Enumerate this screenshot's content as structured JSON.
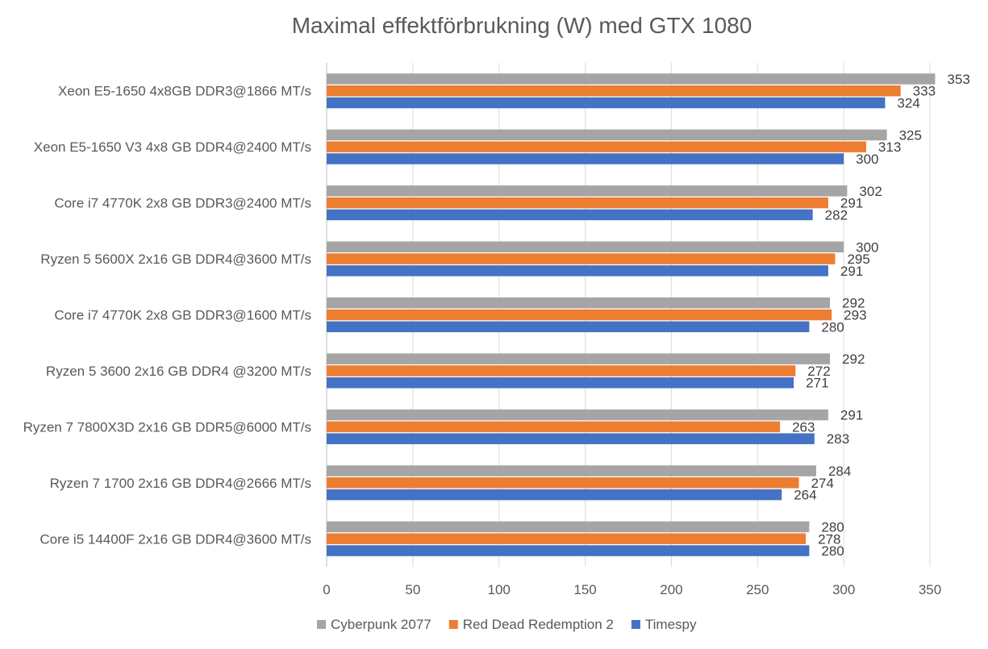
{
  "chart_data": {
    "type": "bar",
    "orientation": "horizontal",
    "title": "Maximal effektförbrukning (W) med GTX 1080",
    "xlabel": "",
    "ylabel": "",
    "xlim": [
      0,
      350
    ],
    "x_ticks": [
      0,
      50,
      100,
      150,
      200,
      250,
      300,
      350
    ],
    "grid": "vertical",
    "legend_position": "bottom",
    "categories": [
      "Xeon E5-1650 4x8GB DDR3@1866 MT/s",
      "Xeon E5-1650 V3 4x8 GB DDR4@2400 MT/s",
      "Core i7 4770K 2x8 GB DDR3@2400 MT/s",
      "Ryzen 5 5600X 2x16 GB DDR4@3600 MT/s",
      "Core i7 4770K 2x8 GB DDR3@1600 MT/s",
      "Ryzen 5 3600 2x16 GB DDR4 @3200 MT/s",
      "Ryzen 7 7800X3D 2x16 GB DDR5@6000 MT/s",
      "Ryzen 7 1700 2x16 GB DDR4@2666 MT/s",
      "Core i5 14400F 2x16 GB DDR4@3600 MT/s"
    ],
    "series": [
      {
        "name": "Cyberpunk 2077",
        "color": "#a5a5a5",
        "values": [
          353,
          325,
          302,
          300,
          292,
          292,
          291,
          284,
          280
        ]
      },
      {
        "name": "Red Dead Redemption 2",
        "color": "#ed7d31",
        "values": [
          333,
          313,
          291,
          295,
          293,
          272,
          263,
          274,
          278
        ]
      },
      {
        "name": "Timespy",
        "color": "#4472c4",
        "values": [
          324,
          300,
          282,
          291,
          280,
          271,
          283,
          264,
          280
        ]
      }
    ]
  }
}
